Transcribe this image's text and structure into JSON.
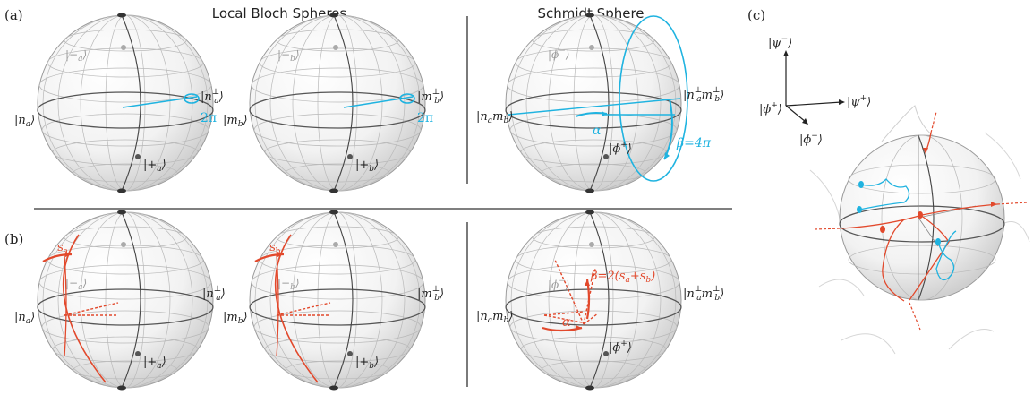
{
  "panels": {
    "a": "(a)",
    "b": "(b)",
    "c": "(c)"
  },
  "headers": {
    "local": "Local Bloch Spheres",
    "schmidt": "Schmidt Sphere"
  },
  "row_a": {
    "s1": {
      "left": "|n",
      "left_sub": "a",
      "right": "|n",
      "right_sub": "a",
      "right_sup": "⊥",
      "minus": "|−",
      "minus_sub": "a",
      "plus": "|+",
      "plus_sub": "a",
      "angle": "2π"
    },
    "s2": {
      "left": "|m",
      "left_sub": "b",
      "right": "|m",
      "right_sub": "b",
      "right_sup": "⊥",
      "minus": "|−",
      "minus_sub": "b",
      "plus": "|+",
      "plus_sub": "b",
      "angle": "2π"
    },
    "s3": {
      "left": "|n",
      "left_sub": "a",
      "left2": "m",
      "left2_sub": "b",
      "right": "|n",
      "right_sub": "a",
      "right_sup": "⊥",
      "right2": "m",
      "right2_sub": "b",
      "right2_sup": "⊥",
      "phim": "|ϕ",
      "phim_sup": "−",
      "phip": "|ϕ",
      "phip_sup": "+",
      "alpha": "α",
      "beta": "β=4π"
    }
  },
  "row_b": {
    "s1": {
      "left": "|n",
      "left_sub": "a",
      "right": "|n",
      "right_sub": "a",
      "right_sup": "⊥",
      "minus": "|−",
      "minus_sub": "a",
      "plus": "|+",
      "plus_sub": "a",
      "s": "s",
      "s_sub": "a"
    },
    "s2": {
      "left": "|m",
      "left_sub": "b",
      "right": "|m",
      "right_sub": "b",
      "right_sup": "⊥",
      "minus": "|−",
      "minus_sub": "b",
      "plus": "|+",
      "plus_sub": "b",
      "s": "s",
      "s_sub": "b"
    },
    "s3": {
      "left": "|n",
      "left_sub": "a",
      "left2": "m",
      "left2_sub": "b",
      "right": "|n",
      "right_sub": "a",
      "right_sup": "⊥",
      "right2": "m",
      "right2_sub": "b",
      "right2_sup": "⊥",
      "phim": "|ϕ",
      "phim_sup": "−",
      "phip": "|ϕ",
      "phip_sup": "+",
      "alpha": "α",
      "beta": "β=2(s",
      "beta_sub1": "a",
      "beta_mid": "+s",
      "beta_sub2": "b",
      "beta_end": ")"
    }
  },
  "axes_c": {
    "psi_minus": "|ψ",
    "psi_minus_sup": "−",
    "psi_plus": "|ψ",
    "psi_plus_sup": "+",
    "phi_plus": "|ϕ",
    "phi_plus_sup": "+",
    "phi_minus": "|ϕ",
    "phi_minus_sup": "−"
  },
  "colors": {
    "blue": "#1fb3e0",
    "red": "#e2492c",
    "grid": "#b9b9b9",
    "ink": "#222222"
  }
}
